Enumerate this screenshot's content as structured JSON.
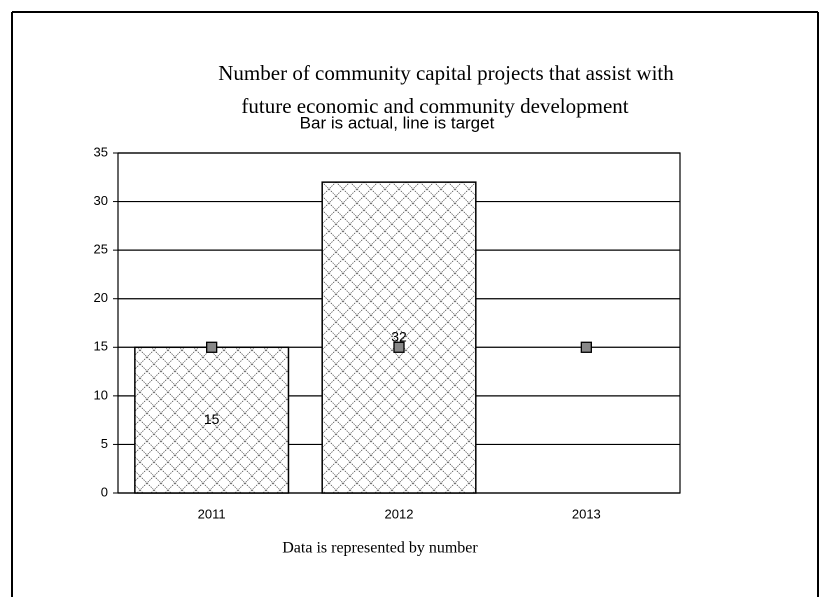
{
  "chart_data": {
    "type": "bar",
    "title": [
      "Number of community capital projects that assist with",
      "future economic and community development"
    ],
    "subtitle": "Bar is actual, line is target",
    "footer": "Data is represented by number",
    "categories": [
      "2011",
      "2012",
      "2013"
    ],
    "series": [
      {
        "type": "bar",
        "color": "#444444",
        "values": [
          15,
          32,
          null
        ]
      },
      {
        "type": "marker",
        "color": "#888888",
        "values": [
          15,
          15,
          15
        ]
      }
    ],
    "ylim": [
      0,
      35
    ],
    "yticks": [
      0,
      5,
      10,
      15,
      20,
      25,
      30,
      35
    ],
    "grid": true
  }
}
